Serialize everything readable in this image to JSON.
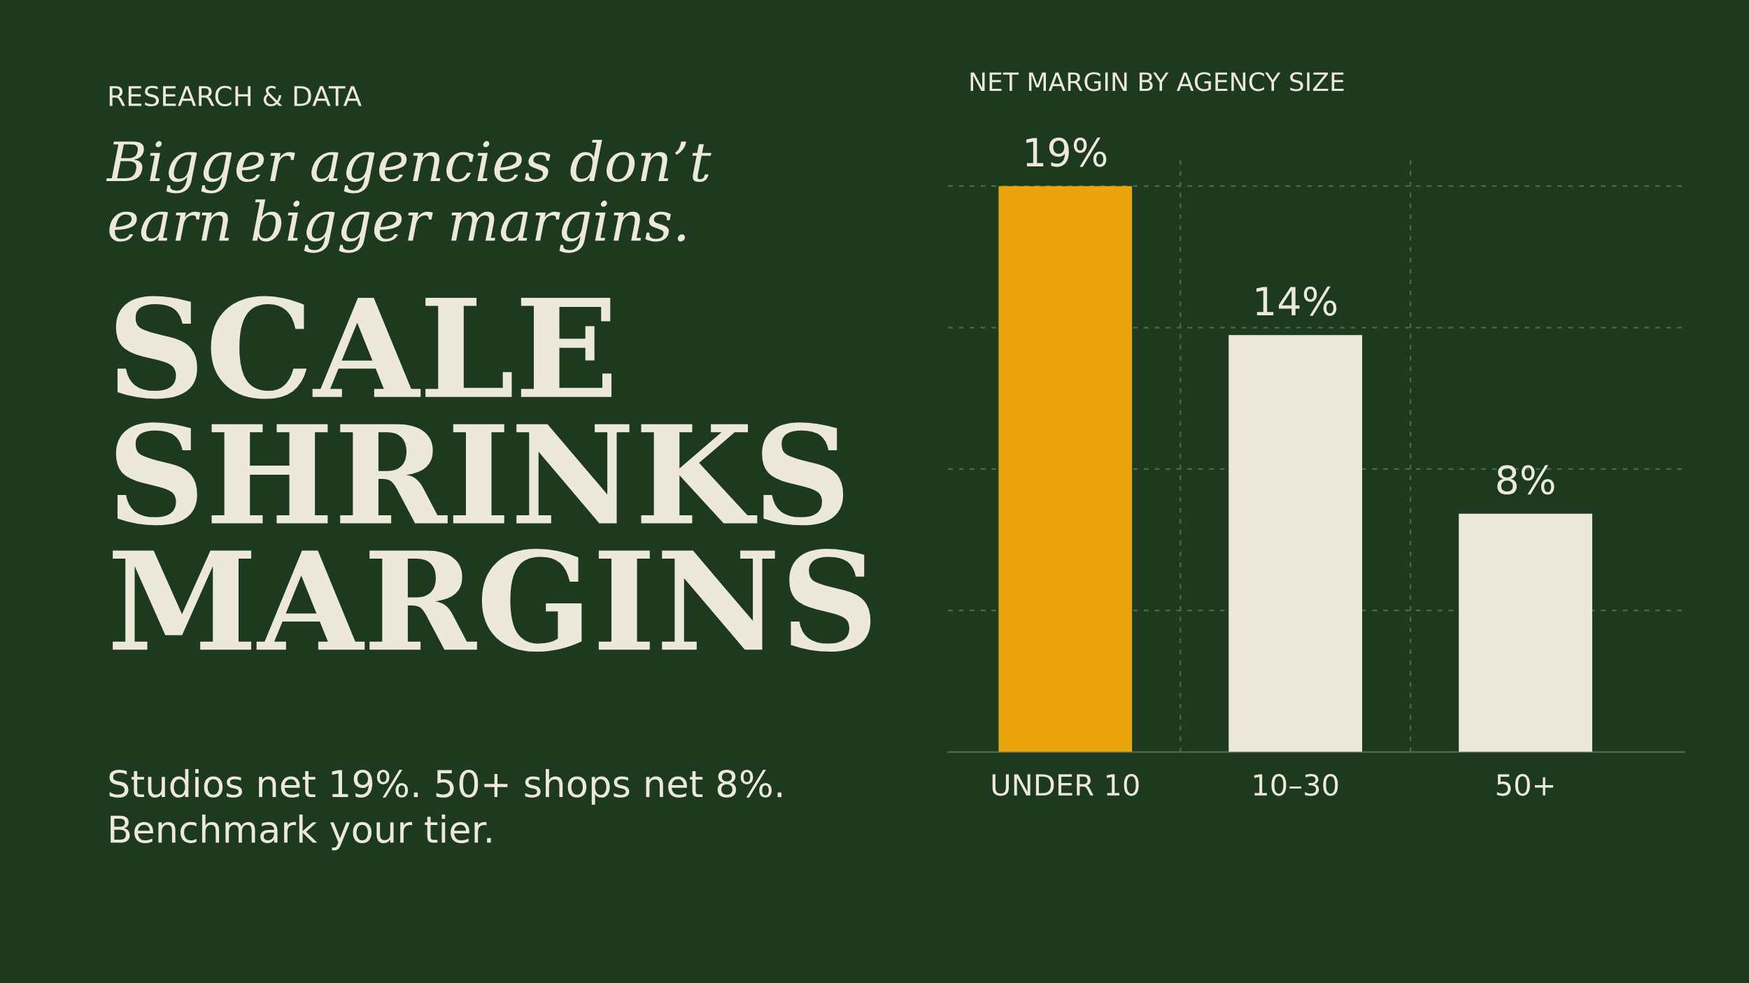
{
  "chart_data": {
    "type": "bar",
    "title": "NET MARGIN BY AGENCY SIZE",
    "categories": [
      "UNDER 10",
      "10–30",
      "50+"
    ],
    "values": [
      19,
      14,
      8
    ],
    "colors": [
      "#e9a40e",
      "#ece8dc",
      "#ece8dc"
    ],
    "data_labels": true,
    "value_labels": [
      "19%",
      "14%",
      "8%"
    ],
    "ylim": [
      0,
      20
    ],
    "yticks": [
      {
        "value": 4.75,
        "label": null
      },
      {
        "value": 9.5,
        "label": null
      },
      {
        "value": 14.25,
        "label": null
      },
      {
        "value": 19,
        "label": null
      }
    ],
    "tick_labels": "x",
    "grid": true,
    "annotations": [
      "RESEARCH & DATA",
      "Bigger agencies don’t\nearn bigger margins.",
      "SCALE\nSHRINKS\nMARGINS",
      "Studios net 19%. 50+ shops net 8%.\nBenchmark your tier."
    ]
  }
}
